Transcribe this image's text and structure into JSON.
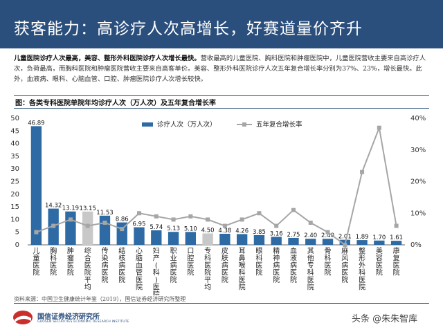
{
  "header": {
    "title": "获客能力：高诊疗人次高增长，好赛道量价齐升"
  },
  "summary": {
    "lead": "儿童医院诊疗人次最高，美容、整形外科医院诊疗人次增长最快。",
    "body": "营收最高的儿童医院、胸科医院和肿瘤医院中，儿童医院营收主要来自高诊疗人次，负荷最高，而胸科医院和肿瘤医院营收主要来自高客单价。美容、整形外科医院诊疗人次五年复合增长率分别为37%、23%，增长最快。此外，血液病、眼科、心脑血管、口腔、肿瘤医院诊疗人次增长较快。"
  },
  "figure_caption": "图：各类专科医院单院年均诊疗人次（万人次）及五年复合增长率",
  "source": "资料来源：中国卫生健康统计年鉴（2019），国信证券经济研究所整理",
  "logo": {
    "name": "国信证券经济研究所",
    "sub": "GUOSEN SECURITIES ECONOMIC RESEARCH INSTITUTE"
  },
  "watermark": "头条 @朱朱智库",
  "colors": {
    "header": "#2b4f7d",
    "bar": "#2e6ba5",
    "bar_highlight": "#c8c8c8",
    "line": "#a6a6a6"
  },
  "chart_data": {
    "type": "bar",
    "categories": [
      "儿童医院",
      "胸科医院",
      "肿瘤医院",
      "综合医院平均",
      "传染病医院",
      "结核病医院",
      "心脑血管医院",
      "妇产(科)医院",
      "职业病医院",
      "口腔医院",
      "专科医院平均",
      "皮肤病医院",
      "耳鼻喉科医院",
      "眼科医院",
      "精神病医院",
      "血液病医院",
      "其他专科医院",
      "骨科医院",
      "麻风病医院",
      "整形外科医院",
      "美容医院",
      "康复医院"
    ],
    "series": [
      {
        "name": "诊疗人次（万人次）",
        "type": "bar",
        "axis": "left",
        "values": [
          46.89,
          14.32,
          13.19,
          13.15,
          11.53,
          8.86,
          6.95,
          5.74,
          5.13,
          5.1,
          4.5,
          4.38,
          4.26,
          3.85,
          3.16,
          2.75,
          2.4,
          2.4,
          2.01,
          1.89,
          1.7,
          1.61
        ],
        "labels": [
          "46.89",
          "14.32",
          "13.19",
          "13.15",
          "11.53",
          "8.86",
          "6.95",
          "5.74",
          "5.13",
          "5.10",
          "4.50",
          "4.38",
          "4.26",
          "3.85",
          "3.16",
          "2.75",
          "2.40",
          "2.40",
          "2.01",
          "1.89",
          "1.70",
          "1.61"
        ],
        "highlight": [
          3,
          10
        ]
      },
      {
        "name": "五年复合增长率",
        "type": "line",
        "axis": "right",
        "values": [
          0.04,
          0.06,
          0.08,
          0.06,
          0.07,
          0.05,
          0.1,
          0.09,
          0.08,
          0.09,
          0.08,
          0.06,
          0.08,
          0.1,
          0.06,
          0.11,
          0.07,
          0.04,
          0.0,
          0.23,
          0.37,
          0.06
        ]
      }
    ],
    "y_left": {
      "min": 0,
      "max": 50,
      "ticks": [
        "0",
        "5",
        "10",
        "15",
        "20",
        "25",
        "30",
        "35",
        "40",
        "45",
        "50"
      ]
    },
    "y_right": {
      "min": 0,
      "max": 0.4,
      "ticks": [
        "0%",
        "10%",
        "20%",
        "30%",
        "40%"
      ]
    },
    "grid": false,
    "legend_position": "top-center"
  }
}
